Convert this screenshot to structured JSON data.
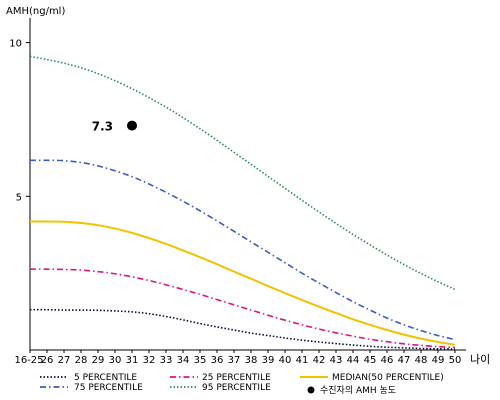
{
  "chart_data": {
    "type": "line",
    "ylabel": "AMH(ng/ml)",
    "xlabel": "나이",
    "categories": [
      "16-25",
      "26",
      "27",
      "28",
      "29",
      "30",
      "31",
      "32",
      "33",
      "34",
      "35",
      "36",
      "37",
      "38",
      "39",
      "40",
      "41",
      "42",
      "43",
      "44",
      "45",
      "46",
      "47",
      "48",
      "49",
      "50"
    ],
    "ylim": [
      0,
      10.8
    ],
    "yticks": [
      5,
      10
    ],
    "grid": false,
    "legend_position": "bottom",
    "series": [
      {
        "name": "5 PERCENTILE",
        "color": "#0a0a3c",
        "style": "dotted",
        "values": [
          1.31,
          1.31,
          1.3,
          1.3,
          1.29,
          1.27,
          1.24,
          1.18,
          1.09,
          0.98,
          0.86,
          0.75,
          0.65,
          0.55,
          0.47,
          0.39,
          0.32,
          0.26,
          0.21,
          0.16,
          0.12,
          0.09,
          0.07,
          0.05,
          0.04,
          0.03
        ]
      },
      {
        "name": "25 PERCENTILE",
        "color": "#e0147a",
        "style": "dashdot",
        "values": [
          2.63,
          2.63,
          2.62,
          2.6,
          2.55,
          2.48,
          2.38,
          2.26,
          2.12,
          1.97,
          1.81,
          1.64,
          1.47,
          1.3,
          1.13,
          0.97,
          0.82,
          0.68,
          0.56,
          0.45,
          0.35,
          0.27,
          0.2,
          0.15,
          0.11,
          0.08
        ]
      },
      {
        "name": "MEDIAN(50 PERCENTILE)",
        "color": "#f2c200",
        "style": "solid",
        "values": [
          4.18,
          4.18,
          4.17,
          4.13,
          4.06,
          3.95,
          3.81,
          3.64,
          3.45,
          3.24,
          3.02,
          2.79,
          2.55,
          2.32,
          2.08,
          1.85,
          1.63,
          1.41,
          1.2,
          1.0,
          0.82,
          0.65,
          0.5,
          0.37,
          0.26,
          0.17
        ]
      },
      {
        "name": "75 PERCENTILE",
        "color": "#3c5ac8",
        "style": "dashdot",
        "values": [
          6.17,
          6.17,
          6.16,
          6.1,
          5.99,
          5.83,
          5.64,
          5.4,
          5.13,
          4.84,
          4.53,
          4.2,
          3.86,
          3.52,
          3.18,
          2.84,
          2.5,
          2.18,
          1.87,
          1.57,
          1.3,
          1.04,
          0.82,
          0.63,
          0.47,
          0.34
        ]
      },
      {
        "name": "95 PERCENTILE",
        "color": "#2e8b57",
        "style": "dotted",
        "values": [
          9.55,
          9.45,
          9.33,
          9.18,
          8.99,
          8.76,
          8.5,
          8.21,
          7.9,
          7.56,
          7.2,
          6.82,
          6.43,
          6.04,
          5.65,
          5.26,
          4.87,
          4.49,
          4.12,
          3.76,
          3.42,
          3.09,
          2.78,
          2.49,
          2.22,
          1.97
        ]
      }
    ],
    "points": [
      {
        "name": "수진자의 AMH 농도",
        "x": "31",
        "y": 7.3,
        "label": "7.3",
        "color": "#000000"
      }
    ]
  }
}
